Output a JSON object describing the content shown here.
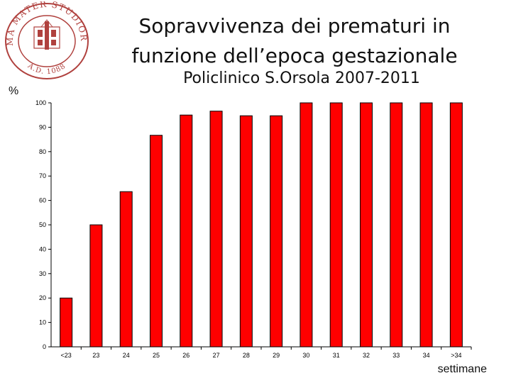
{
  "header": {
    "title_line1": "Sopravvivenza dei prematuri  in",
    "title_line2": "funzione dell’epoca gestazionale",
    "subtitle": "Policlinico S.Orsola 2007-2011"
  },
  "logo": {
    "seal_text": "ALMA MATER STUDIORUM",
    "seal_date": "A.D. 1088",
    "color": "#b0413e"
  },
  "chart_data": {
    "type": "bar",
    "categories": [
      "<23",
      "23",
      "24",
      "25",
      "26",
      "27",
      "28",
      "29",
      "30",
      "31",
      "32",
      "33",
      "34",
      ">34"
    ],
    "values": [
      20,
      50,
      63.6,
      86.7,
      95,
      96.6,
      94.7,
      94.7,
      100,
      100,
      100,
      100,
      100,
      100
    ],
    "ylabel": "%",
    "xlabel": "settimane",
    "ylim": [
      0,
      100
    ],
    "yticks": [
      0,
      10,
      20,
      30,
      40,
      50,
      60,
      70,
      80,
      90,
      100
    ],
    "grid": false,
    "legend": "none",
    "bar_color": "#ff0000",
    "bar_edge_color": "#000000"
  }
}
